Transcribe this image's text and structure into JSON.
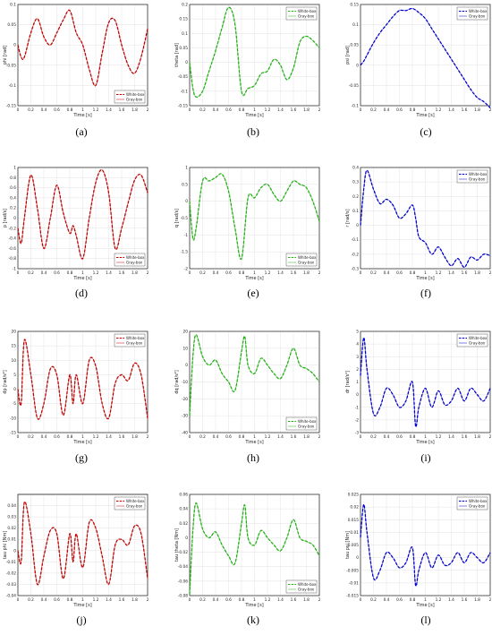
{
  "chart_data": [
    {
      "type": "line",
      "panel": "a",
      "ylabel": "phi [rad]",
      "xlabel": "Time [s]",
      "xlim": [
        0,
        2
      ],
      "ylim": [
        -0.15,
        0.1
      ],
      "xticks": [
        0,
        0.2,
        0.4,
        0.6,
        0.8,
        1,
        1.2,
        1.4,
        1.6,
        1.8,
        2
      ],
      "yticks": [
        -0.15,
        -0.1,
        -0.05,
        0,
        0.05,
        0.1
      ],
      "legend_position": "bottom-right",
      "color": "#c00000",
      "series": [
        {
          "name": "White-box",
          "style": "dashed"
        },
        {
          "name": "Gray-box",
          "style": "solid"
        }
      ],
      "x": [
        0,
        0.05,
        0.1,
        0.2,
        0.3,
        0.4,
        0.5,
        0.6,
        0.7,
        0.8,
        0.9,
        1.0,
        1.1,
        1.2,
        1.3,
        1.4,
        1.5,
        1.6,
        1.7,
        1.8,
        1.9,
        2.0
      ],
      "y": [
        0.0,
        -0.03,
        -0.03,
        0.03,
        0.065,
        0.02,
        0.0,
        0.03,
        0.062,
        0.085,
        0.03,
        0.0,
        -0.06,
        -0.1,
        -0.02,
        0.055,
        0.06,
        0.0,
        -0.05,
        -0.07,
        -0.03,
        0.04
      ]
    },
    {
      "type": "line",
      "panel": "b",
      "ylabel": "theta [rad]",
      "xlabel": "Time [s]",
      "xlim": [
        0,
        2
      ],
      "ylim": [
        -0.15,
        0.2
      ],
      "xticks": [
        0,
        0.2,
        0.4,
        0.6,
        0.8,
        1,
        1.2,
        1.4,
        1.6,
        1.8,
        2
      ],
      "yticks": [
        -0.15,
        -0.1,
        -0.05,
        0,
        0.05,
        0.1,
        0.15,
        0.2
      ],
      "legend_position": "top-right",
      "color": "#22b014",
      "series": [
        {
          "name": "White-box",
          "style": "dashed"
        },
        {
          "name": "Gray-box",
          "style": "solid"
        }
      ],
      "x": [
        0,
        0.05,
        0.1,
        0.2,
        0.3,
        0.4,
        0.5,
        0.6,
        0.7,
        0.8,
        0.9,
        1.0,
        1.1,
        1.2,
        1.3,
        1.4,
        1.5,
        1.6,
        1.7,
        1.8,
        1.9,
        2.0
      ],
      "y": [
        0.0,
        -0.09,
        -0.12,
        -0.1,
        -0.03,
        0.04,
        0.12,
        0.19,
        0.13,
        -0.1,
        -0.09,
        -0.08,
        -0.04,
        -0.03,
        0.01,
        -0.01,
        -0.06,
        -0.02,
        0.07,
        0.09,
        0.075,
        0.05
      ]
    },
    {
      "type": "line",
      "panel": "c",
      "ylabel": "psi [rad]",
      "xlabel": "Time [s]",
      "xlim": [
        0,
        2
      ],
      "ylim": [
        -0.1,
        0.15
      ],
      "xticks": [
        0,
        0.2,
        0.4,
        0.6,
        0.8,
        1,
        1.2,
        1.4,
        1.6,
        1.8,
        2
      ],
      "yticks": [
        -0.1,
        -0.05,
        0,
        0.05,
        0.1,
        0.15
      ],
      "legend_position": "top-right",
      "color": "#0000cc",
      "series": [
        {
          "name": "White-box",
          "style": "dashed"
        },
        {
          "name": "Gray-box",
          "style": "solid"
        }
      ],
      "x": [
        0,
        0.05,
        0.1,
        0.2,
        0.3,
        0.4,
        0.5,
        0.6,
        0.7,
        0.8,
        0.9,
        1.0,
        1.1,
        1.2,
        1.3,
        1.4,
        1.5,
        1.6,
        1.7,
        1.8,
        1.9,
        2.0
      ],
      "y": [
        0.0,
        0.01,
        0.025,
        0.055,
        0.08,
        0.1,
        0.12,
        0.135,
        0.135,
        0.14,
        0.13,
        0.115,
        0.09,
        0.065,
        0.04,
        0.015,
        -0.01,
        -0.035,
        -0.06,
        -0.08,
        -0.09,
        -0.105
      ]
    },
    {
      "type": "line",
      "panel": "d",
      "ylabel": "p [rad/s]",
      "xlabel": "Time [s]",
      "xlim": [
        0,
        2
      ],
      "ylim": [
        -1,
        1
      ],
      "xticks": [
        0,
        0.2,
        0.4,
        0.6,
        0.8,
        1,
        1.2,
        1.4,
        1.6,
        1.8,
        2
      ],
      "yticks": [
        -1,
        -0.8,
        -0.6,
        -0.4,
        -0.2,
        0,
        0.2,
        0.4,
        0.6,
        0.8,
        1
      ],
      "legend_position": "bottom-right",
      "color": "#c00000",
      "series": [
        {
          "name": "White-box",
          "style": "dashed"
        },
        {
          "name": "Gray-box",
          "style": "solid"
        }
      ],
      "x": [
        0,
        0.05,
        0.1,
        0.2,
        0.3,
        0.4,
        0.5,
        0.6,
        0.7,
        0.8,
        0.85,
        0.9,
        1.0,
        1.1,
        1.2,
        1.3,
        1.4,
        1.5,
        1.6,
        1.7,
        1.8,
        1.9,
        2.0
      ],
      "y": [
        -0.2,
        -0.5,
        0.0,
        0.85,
        0.2,
        -0.6,
        0.0,
        0.65,
        0.1,
        -0.3,
        -0.15,
        -0.35,
        -0.8,
        0.0,
        0.7,
        0.95,
        0.5,
        -0.6,
        -0.2,
        0.3,
        0.75,
        0.85,
        0.5
      ]
    },
    {
      "type": "line",
      "panel": "e",
      "ylabel": "q [rad/s]",
      "xlabel": "Time [s]",
      "xlim": [
        0,
        2
      ],
      "ylim": [
        -2,
        1
      ],
      "xticks": [
        0,
        0.2,
        0.4,
        0.6,
        0.8,
        1,
        1.2,
        1.4,
        1.6,
        1.8,
        2
      ],
      "yticks": [
        -2,
        -1.5,
        -1,
        -0.5,
        0,
        0.5,
        1
      ],
      "legend_position": "bottom-right",
      "color": "#22b014",
      "series": [
        {
          "name": "White-box",
          "style": "dashed"
        },
        {
          "name": "Gray-box",
          "style": "solid"
        }
      ],
      "x": [
        0,
        0.05,
        0.1,
        0.2,
        0.3,
        0.4,
        0.5,
        0.6,
        0.7,
        0.8,
        0.9,
        1.0,
        1.1,
        1.2,
        1.3,
        1.4,
        1.5,
        1.6,
        1.7,
        1.8,
        1.9,
        2.0
      ],
      "y": [
        0.0,
        -1.1,
        -0.8,
        0.6,
        0.6,
        0.7,
        0.8,
        0.3,
        -0.8,
        -1.7,
        0.1,
        0.1,
        0.4,
        0.5,
        0.2,
        0.0,
        0.3,
        0.6,
        0.5,
        0.4,
        0.0,
        -0.6
      ]
    },
    {
      "type": "line",
      "panel": "f",
      "ylabel": "r [rad/s]",
      "xlabel": "Time [s]",
      "xlim": [
        0,
        2
      ],
      "ylim": [
        -0.3,
        0.4
      ],
      "xticks": [
        0,
        0.2,
        0.4,
        0.6,
        0.8,
        1,
        1.2,
        1.4,
        1.6,
        1.8,
        2
      ],
      "yticks": [
        -0.3,
        -0.2,
        -0.1,
        0,
        0.1,
        0.2,
        0.3,
        0.4
      ],
      "legend_position": "top-right",
      "color": "#0000cc",
      "series": [
        {
          "name": "White-box",
          "style": "dashed"
        },
        {
          "name": "Gray-box",
          "style": "solid"
        }
      ],
      "x": [
        0,
        0.05,
        0.1,
        0.2,
        0.3,
        0.4,
        0.5,
        0.6,
        0.7,
        0.8,
        0.85,
        0.9,
        1.0,
        1.1,
        1.2,
        1.3,
        1.4,
        1.5,
        1.6,
        1.7,
        1.8,
        1.9,
        2.0
      ],
      "y": [
        0.0,
        0.25,
        0.38,
        0.25,
        0.15,
        0.18,
        0.14,
        0.05,
        0.08,
        0.14,
        0.05,
        -0.08,
        -0.12,
        -0.2,
        -0.15,
        -0.22,
        -0.28,
        -0.23,
        -0.29,
        -0.22,
        -0.24,
        -0.2,
        -0.21
      ]
    },
    {
      "type": "line",
      "panel": "g",
      "ylabel": "dp [rad/s²]",
      "xlabel": "Time [s]",
      "xlim": [
        0,
        2
      ],
      "ylim": [
        -15,
        20
      ],
      "xticks": [
        0,
        0.2,
        0.4,
        0.6,
        0.8,
        1,
        1.2,
        1.4,
        1.6,
        1.8,
        2
      ],
      "yticks": [
        -15,
        -10,
        -5,
        0,
        5,
        10,
        15,
        20
      ],
      "legend_position": "top-right",
      "color": "#c00000",
      "series": [
        {
          "name": "White-box",
          "style": "dashed"
        },
        {
          "name": "Gray-box",
          "style": "solid"
        }
      ],
      "x": [
        0,
        0.05,
        0.1,
        0.2,
        0.3,
        0.4,
        0.5,
        0.6,
        0.7,
        0.8,
        0.85,
        0.9,
        1.0,
        1.1,
        1.2,
        1.3,
        1.4,
        1.5,
        1.6,
        1.7,
        1.8,
        1.9,
        2.0
      ],
      "y": [
        0,
        -5,
        17,
        5,
        -10,
        -5,
        7,
        5,
        -9,
        5,
        -5,
        5,
        -5,
        10,
        8,
        -5,
        -10,
        2,
        5,
        3,
        9,
        5,
        -10
      ]
    },
    {
      "type": "line",
      "panel": "h",
      "ylabel": "dq [rad/s²]",
      "xlabel": "Time [s]",
      "xlim": [
        0,
        2
      ],
      "ylim": [
        -40,
        20
      ],
      "xticks": [
        0,
        0.2,
        0.4,
        0.6,
        0.8,
        1,
        1.2,
        1.4,
        1.6,
        1.8,
        2
      ],
      "yticks": [
        -40,
        -30,
        -20,
        -10,
        0,
        10,
        20
      ],
      "legend_position": "bottom-right",
      "color": "#22b014",
      "series": [
        {
          "name": "White-box",
          "style": "dashed"
        },
        {
          "name": "Gray-box",
          "style": "solid"
        }
      ],
      "x": [
        0,
        0.05,
        0.1,
        0.2,
        0.3,
        0.4,
        0.5,
        0.6,
        0.7,
        0.8,
        0.85,
        0.9,
        1.0,
        1.1,
        1.2,
        1.3,
        1.4,
        1.5,
        1.6,
        1.7,
        1.8,
        1.9,
        2.0
      ],
      "y": [
        -30,
        5,
        18,
        5,
        0,
        3,
        -5,
        -10,
        -15,
        8,
        17,
        0,
        -5,
        4,
        0,
        -5,
        -8,
        0,
        10,
        0,
        -2,
        -5,
        -10
      ]
    },
    {
      "type": "line",
      "panel": "i",
      "ylabel": "dr [rad/s²]",
      "xlabel": "Time [s]",
      "xlim": [
        0,
        2
      ],
      "ylim": [
        -3,
        5
      ],
      "xticks": [
        0,
        0.2,
        0.4,
        0.6,
        0.8,
        1,
        1.2,
        1.4,
        1.6,
        1.8,
        2
      ],
      "yticks": [
        -3,
        -2,
        -1,
        0,
        1,
        2,
        3,
        4,
        5
      ],
      "legend_position": "top-right",
      "color": "#0000cc",
      "series": [
        {
          "name": "White-box",
          "style": "dashed"
        },
        {
          "name": "Gray-box",
          "style": "solid"
        }
      ],
      "x": [
        0,
        0.05,
        0.1,
        0.2,
        0.3,
        0.4,
        0.5,
        0.6,
        0.7,
        0.8,
        0.85,
        0.9,
        1.0,
        1.1,
        1.2,
        1.3,
        1.4,
        1.5,
        1.6,
        1.7,
        1.8,
        1.9,
        2.0
      ],
      "y": [
        1.5,
        4.5,
        2,
        -1.5,
        -1,
        0.5,
        0,
        -1,
        -0.5,
        1,
        -2.5,
        -1,
        0.5,
        -1,
        0.3,
        -0.8,
        -0.5,
        0.5,
        -0.5,
        0.5,
        0,
        -0.5,
        0.5
      ]
    },
    {
      "type": "line",
      "panel": "j",
      "ylabel": "tau phi [Nm]",
      "xlabel": "Time [s]",
      "xlim": [
        0,
        2
      ],
      "ylim": [
        -0.04,
        0.05
      ],
      "xticks": [
        0,
        0.2,
        0.4,
        0.6,
        0.8,
        1,
        1.2,
        1.4,
        1.6,
        1.8,
        2
      ],
      "yticks": [
        -0.04,
        -0.03,
        -0.02,
        -0.01,
        0,
        0.01,
        0.02,
        0.03,
        0.04
      ],
      "legend_position": "top-right",
      "color": "#c00000",
      "series": [
        {
          "name": "White-box",
          "style": "dashed"
        },
        {
          "name": "Gray-box",
          "style": "solid"
        }
      ],
      "x": [
        0,
        0.05,
        0.1,
        0.2,
        0.3,
        0.4,
        0.5,
        0.6,
        0.7,
        0.8,
        0.85,
        0.9,
        1.0,
        1.1,
        1.2,
        1.3,
        1.4,
        1.5,
        1.6,
        1.7,
        1.8,
        1.9,
        2.0
      ],
      "y": [
        0,
        -0.01,
        0.043,
        0.015,
        -0.03,
        -0.005,
        0.018,
        0.015,
        -0.025,
        0.015,
        -0.01,
        0.015,
        -0.015,
        0.025,
        0.02,
        -0.005,
        -0.03,
        0.005,
        0.01,
        0.005,
        0.022,
        0.015,
        -0.025
      ]
    },
    {
      "type": "line",
      "panel": "k",
      "ylabel": "tau theta [Nm]",
      "xlabel": "Time [s]",
      "xlim": [
        0,
        2
      ],
      "ylim": [
        -0.08,
        0.06
      ],
      "xticks": [
        0,
        0.2,
        0.4,
        0.6,
        0.8,
        1,
        1.2,
        1.4,
        1.6,
        1.8,
        2
      ],
      "yticks": [
        -0.08,
        -0.06,
        -0.04,
        -0.02,
        0,
        0.02,
        0.04,
        0.06
      ],
      "legend_position": "bottom-right",
      "color": "#22b014",
      "series": [
        {
          "name": "White-box",
          "style": "dashed"
        },
        {
          "name": "Gray-box",
          "style": "solid"
        }
      ],
      "x": [
        0,
        0.05,
        0.1,
        0.2,
        0.3,
        0.4,
        0.5,
        0.6,
        0.7,
        0.8,
        0.85,
        0.9,
        1.0,
        1.1,
        1.2,
        1.3,
        1.4,
        1.5,
        1.6,
        1.7,
        1.8,
        1.9,
        2.0
      ],
      "y": [
        -0.078,
        0.01,
        0.048,
        0.012,
        0.0,
        0.008,
        -0.01,
        -0.025,
        -0.035,
        0.02,
        0.045,
        0.0,
        -0.01,
        0.01,
        0.0,
        -0.01,
        -0.018,
        0.0,
        0.025,
        0.0,
        -0.005,
        -0.01,
        -0.025
      ]
    },
    {
      "type": "line",
      "panel": "l",
      "ylabel": "tau psi [Nm]",
      "xlabel": "Time [s]",
      "xlim": [
        0,
        2
      ],
      "ylim": [
        -0.015,
        0.025
      ],
      "xticks": [
        0,
        0.2,
        0.4,
        0.6,
        0.8,
        1,
        1.2,
        1.4,
        1.6,
        1.8,
        2
      ],
      "yticks": [
        -0.015,
        -0.01,
        -0.005,
        0,
        0.005,
        0.01,
        0.015,
        0.02,
        0.025
      ],
      "legend_position": "top-right",
      "color": "#0000cc",
      "series": [
        {
          "name": "White-box",
          "style": "dashed"
        },
        {
          "name": "Gray-box",
          "style": "solid"
        }
      ],
      "x": [
        0,
        0.05,
        0.1,
        0.2,
        0.3,
        0.4,
        0.5,
        0.6,
        0.7,
        0.8,
        0.85,
        0.9,
        1.0,
        1.1,
        1.2,
        1.3,
        1.4,
        1.5,
        1.6,
        1.7,
        1.8,
        1.9,
        2.0
      ],
      "y": [
        0.008,
        0.021,
        0.01,
        -0.008,
        -0.005,
        0.002,
        0.0,
        -0.004,
        -0.002,
        0.004,
        -0.011,
        -0.005,
        0.002,
        -0.004,
        0.001,
        -0.003,
        -0.002,
        0.002,
        -0.002,
        0.002,
        0.0,
        -0.002,
        0.002
      ]
    }
  ],
  "panel_labels": [
    "(a)",
    "(b)",
    "(c)",
    "(d)",
    "(e)",
    "(f)",
    "(g)",
    "(h)",
    "(i)",
    "(j)",
    "(k)",
    "(l)"
  ]
}
